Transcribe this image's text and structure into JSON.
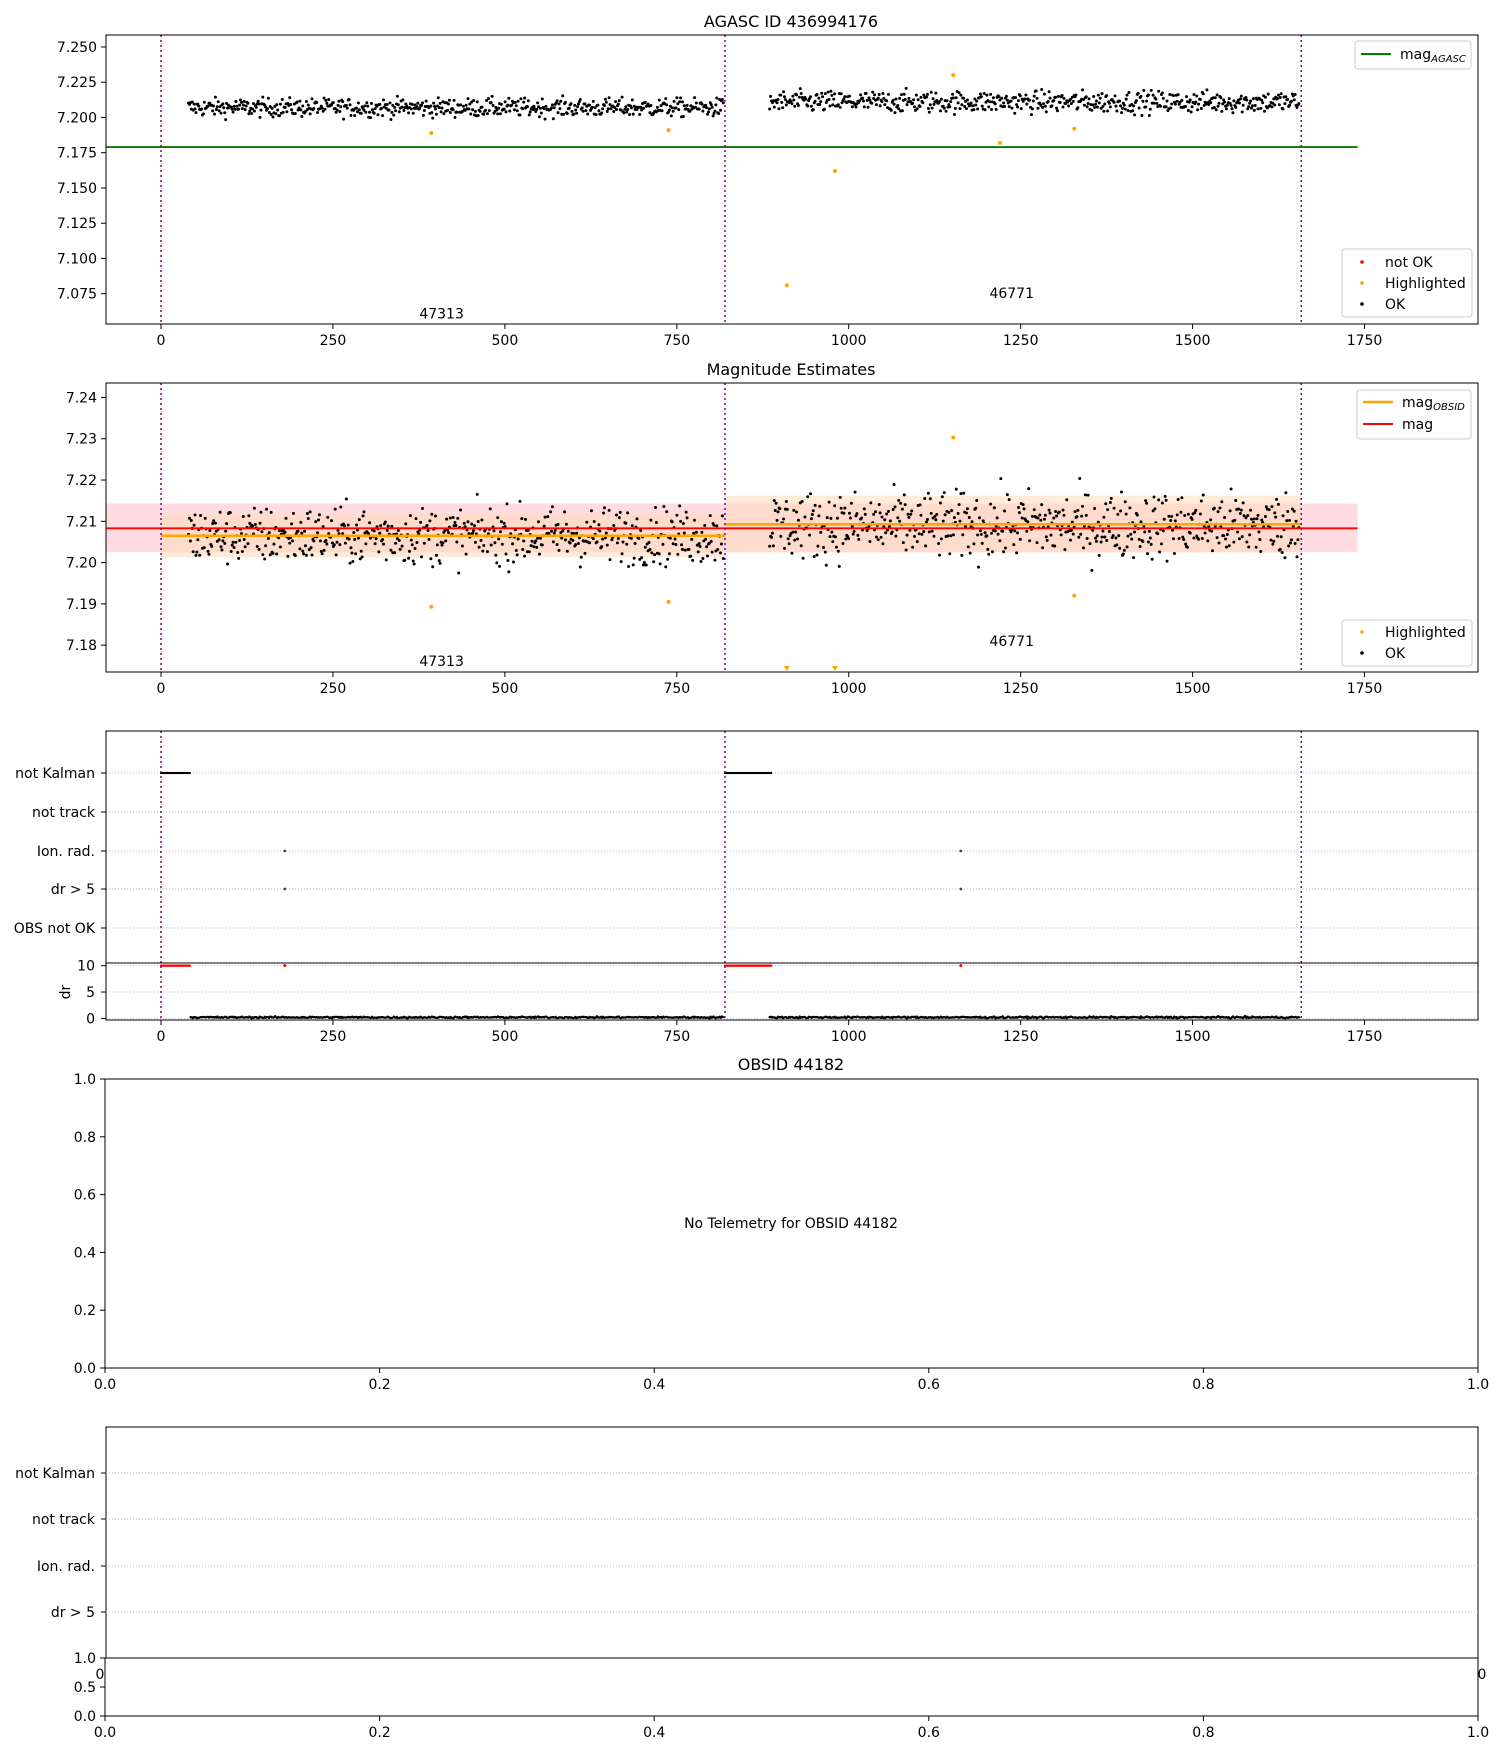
{
  "colors": {
    "ok": "#000000",
    "highlighted": "#ffa500",
    "not_ok": "#ff0000",
    "mag_agasc": "#008000",
    "mag_obsid": "#ffa500",
    "mag": "#ff0000",
    "obsid_boundary": "#800080",
    "band_obsid": "#ffdab9",
    "band_mag": "#ffc0cb"
  },
  "chart_data": [
    {
      "type": "scatter",
      "title": "AGASC ID 436994176",
      "xlabel": "",
      "ylabel": "",
      "xlim": [
        -80,
        1915
      ],
      "ylim": [
        7.0535,
        7.2585
      ],
      "xticks": [
        0,
        250,
        500,
        750,
        1000,
        1250,
        1500,
        1750
      ],
      "yticks": [
        "7.250",
        "7.225",
        "7.200",
        "7.175",
        "7.150",
        "7.125",
        "7.100",
        "7.075"
      ],
      "grid": false,
      "obsid_boundaries": [
        0,
        820,
        1658
      ],
      "obsid_labels": [
        {
          "text": "47313",
          "x": 408,
          "y": 7.061
        },
        {
          "text": "46771",
          "x": 1237,
          "y": 7.0755
        }
      ],
      "lines": [
        {
          "name": "mag_AGASC",
          "name_main": "mag",
          "name_sub": "AGASC",
          "color_key": "mag_agasc",
          "y": 7.179,
          "x_range": [
            -80,
            1740
          ]
        }
      ],
      "segments": [
        {
          "x_range": [
            40,
            818
          ],
          "center": 7.207,
          "noise": 0.0055
        },
        {
          "x_range": [
            885,
            1655
          ],
          "center": 7.211,
          "noise": 0.0065
        }
      ],
      "highlighted_points": [
        {
          "x": 393,
          "y": 7.189
        },
        {
          "x": 738,
          "y": 7.191
        },
        {
          "x": 910,
          "y": 7.081
        },
        {
          "x": 980,
          "y": 7.162
        },
        {
          "x": 1152,
          "y": 7.23
        },
        {
          "x": 1220,
          "y": 7.182
        },
        {
          "x": 1328,
          "y": 7.192
        }
      ],
      "legend_lines": {
        "placement": "top-right"
      },
      "legend_points": {
        "placement": "lower-right",
        "entries": [
          {
            "label": "not OK",
            "color_key": "not_ok"
          },
          {
            "label": "Highlighted",
            "color_key": "highlighted"
          },
          {
            "label": "OK",
            "color_key": "ok"
          }
        ]
      }
    },
    {
      "type": "scatter",
      "title": "Magnitude Estimates",
      "xlabel": "",
      "ylabel": "",
      "xlim": [
        -80,
        1915
      ],
      "ylim": [
        7.1735,
        7.2435
      ],
      "xticks": [
        0,
        250,
        500,
        750,
        1000,
        1250,
        1500,
        1750
      ],
      "yticks": [
        "7.24",
        "7.23",
        "7.22",
        "7.21",
        "7.20",
        "7.19",
        "7.18"
      ],
      "grid": false,
      "obsid_boundaries": [
        0,
        820,
        1658
      ],
      "obsid_labels": [
        {
          "text": "47313",
          "x": 408,
          "y": 7.1762
        },
        {
          "text": "46771",
          "x": 1237,
          "y": 7.181
        }
      ],
      "bands": [
        {
          "color_key": "band_mag",
          "x_range": [
            -80,
            1740
          ],
          "y_range": [
            7.2025,
            7.2143
          ]
        },
        {
          "color_key": "band_obsid",
          "x_range": [
            0,
            820
          ],
          "y_range": [
            7.2013,
            7.2118
          ]
        },
        {
          "color_key": "band_obsid",
          "x_range": [
            820,
            1658
          ],
          "y_range": [
            7.2025,
            7.2162
          ]
        }
      ],
      "lines": [
        {
          "name": "mag_OBSID",
          "name_main": "mag",
          "name_sub": "OBSID",
          "color_key": "mag_obsid",
          "segments": [
            {
              "x_range": [
                0,
                820
              ],
              "y": 7.2065
            },
            {
              "x_range": [
                820,
                1658
              ],
              "y": 7.2093
            }
          ]
        },
        {
          "name": "mag",
          "name_main": "mag",
          "name_sub": "",
          "color_key": "mag",
          "segments": [
            {
              "x_range": [
                -80,
                1740
              ],
              "y": 7.2083
            }
          ]
        }
      ],
      "segments": [
        {
          "x_range": [
            40,
            818
          ],
          "center": 7.2065,
          "noise": 0.0058
        },
        {
          "x_range": [
            885,
            1655
          ],
          "center": 7.209,
          "noise": 0.0068
        }
      ],
      "highlighted_points": [
        {
          "x": 393,
          "y": 7.1893
        },
        {
          "x": 738,
          "y": 7.1905
        },
        {
          "x": 1152,
          "y": 7.2303
        },
        {
          "x": 1328,
          "y": 7.192
        }
      ],
      "clipped_markers": [
        {
          "x": 910
        },
        {
          "x": 980
        }
      ],
      "legend_lines": {
        "placement": "top-right"
      },
      "legend_points": {
        "placement": "lower-right",
        "entries": [
          {
            "label": "Highlighted",
            "color_key": "highlighted"
          },
          {
            "label": "OK",
            "color_key": "ok"
          }
        ]
      }
    },
    {
      "type": "scatter",
      "title": "",
      "xlim": [
        -80,
        1915
      ],
      "xticks": [
        0,
        250,
        500,
        750,
        1000,
        1250,
        1500,
        1750
      ],
      "categories": [
        "not Kalman",
        "not track",
        "Ion. rad.",
        "dr > 5",
        "OBS not OK"
      ],
      "obsid_boundaries": [
        0,
        820,
        1658
      ],
      "flags": [
        {
          "category": "not Kalman",
          "x_ranges": [
            [
              0,
              43
            ],
            [
              820,
              888
            ]
          ]
        },
        {
          "category": "Ion. rad.",
          "points": [
            180,
            1163
          ]
        },
        {
          "category": "dr > 5",
          "points": [
            180,
            1163
          ]
        }
      ],
      "dr": {
        "ylabel": "dr",
        "ylim": [
          -0.3,
          10.5
        ],
        "yticks": [
          0,
          5,
          10
        ],
        "clipped_ranges": [
          [
            0,
            43
          ],
          [
            820,
            888
          ]
        ],
        "clipped_points": [
          180,
          1163
        ],
        "segments": [
          [
            43,
            818
          ],
          [
            885,
            1655
          ]
        ],
        "typical": 0.2
      }
    },
    {
      "type": "scatter",
      "title": "OBSID 44182",
      "xlim": [
        0,
        1
      ],
      "ylim": [
        0,
        1
      ],
      "xticks": [
        "0.0",
        "0.2",
        "0.4",
        "0.6",
        "0.8",
        "1.0"
      ],
      "yticks": [
        "1.0",
        "0.8",
        "0.6",
        "0.4",
        "0.2",
        "0.0"
      ],
      "annotation": "No Telemetry for OBSID 44182"
    },
    {
      "type": "scatter",
      "title": "",
      "categories": [
        "not Kalman",
        "not track",
        "Ion. rad.",
        "dr > 5"
      ],
      "hidden_xticks": {
        "left": "0",
        "right": "0"
      },
      "dr": {
        "xticks": [
          "0.0",
          "0.2",
          "0.4",
          "0.6",
          "0.8",
          "1.0"
        ],
        "yticks": [
          "1.0",
          "0.5",
          "0.0"
        ]
      }
    }
  ]
}
